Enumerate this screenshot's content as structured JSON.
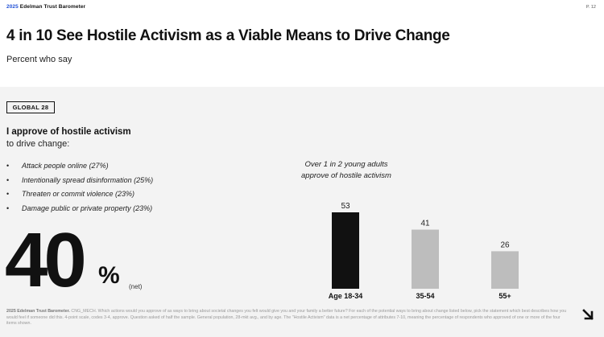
{
  "header": {
    "brand_year": "2025",
    "brand_name": "Edelman Trust Barometer",
    "page_number": "P. 12"
  },
  "title": "4 in 10 See Hostile Activism as a Viable Means to Drive Change",
  "subtitle": "Percent who say",
  "badge": "GLOBAL 28",
  "question": {
    "bold": "I approve of hostile activism",
    "rest": "to drive change:"
  },
  "bullets": [
    "Attack people online (27%)",
    "Intentionally spread disinformation (25%)",
    "Threaten or commit violence (23%)",
    "Damage public or private property (23%)"
  ],
  "headline_stat": {
    "value": "40",
    "unit": "%",
    "qualifier": "(net)"
  },
  "callout": {
    "line1": "Over 1 in 2 young adults",
    "line2": "approve of hostile activism"
  },
  "chart_data": {
    "type": "bar",
    "categories": [
      "Age 18-34",
      "35-54",
      "55+"
    ],
    "values": [
      53,
      41,
      26
    ],
    "colors": [
      "#111111",
      "#bdbdbd",
      "#bdbdbd"
    ],
    "ylim": [
      0,
      53
    ],
    "grid": false
  },
  "footnote": {
    "source": "2025 Edelman Trust Barometer.",
    "text": "CNG_MECH. Which actions would you approve of as ways to bring about societal changes you felt would give you and your family a better future? For each of the potential ways to bring about change listed below, pick the statement which best describes how you would feel if someone did this. 4-point scale, codes 3-4, approve. Question asked of half the sample. General population, 28-mkt avg., and by age. The \"Hostile Activism\" data is a net percentage of attributes 7-10, meaning the percentage of respondents who approved of one or more of the four items shown."
  },
  "icons": {
    "next": "arrow-down-right-icon"
  }
}
